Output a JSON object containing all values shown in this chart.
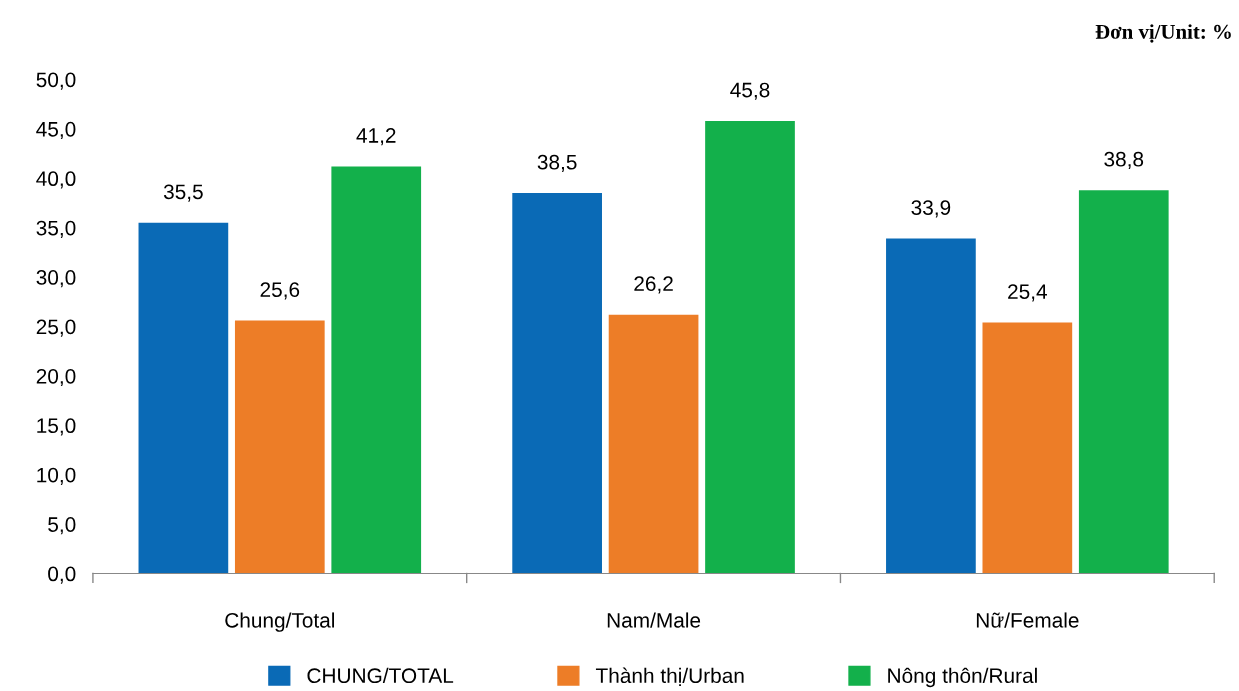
{
  "chart_data": {
    "type": "bar",
    "categories": [
      "Chung/Total",
      "Nam/Male",
      "Nữ/Female"
    ],
    "series": [
      {
        "name": "CHUNG/TOTAL",
        "color": "#0a6ab6",
        "values": [
          35.5,
          38.5,
          33.9
        ],
        "value_labels": [
          "35,5",
          "38,5",
          "33,9"
        ]
      },
      {
        "name": "Thành thị/Urban",
        "color": "#ed7d27",
        "values": [
          25.6,
          26.2,
          25.4
        ],
        "value_labels": [
          "25,6",
          "26,2",
          "25,4"
        ]
      },
      {
        "name": "Nông thôn/Rural",
        "color": "#13b04b",
        "values": [
          41.2,
          45.8,
          38.8
        ],
        "value_labels": [
          "41,2",
          "45,8",
          "38,8"
        ]
      }
    ],
    "ylim": [
      0,
      50
    ],
    "yticks": [
      {
        "value": 0,
        "label": "0,0"
      },
      {
        "value": 5,
        "label": "5,0"
      },
      {
        "value": 10,
        "label": "10,0"
      },
      {
        "value": 15,
        "label": "15,0"
      },
      {
        "value": 20,
        "label": "20,0"
      },
      {
        "value": 25,
        "label": "25,0"
      },
      {
        "value": 30,
        "label": "30,0"
      },
      {
        "value": 35,
        "label": "35,0"
      },
      {
        "value": 40,
        "label": "40,0"
      },
      {
        "value": 45,
        "label": "45,0"
      },
      {
        "value": 50,
        "label": "50,0"
      }
    ],
    "grid": false,
    "legend": "bottom",
    "annotations": [
      "Đơn vị/Unit: %"
    ]
  }
}
